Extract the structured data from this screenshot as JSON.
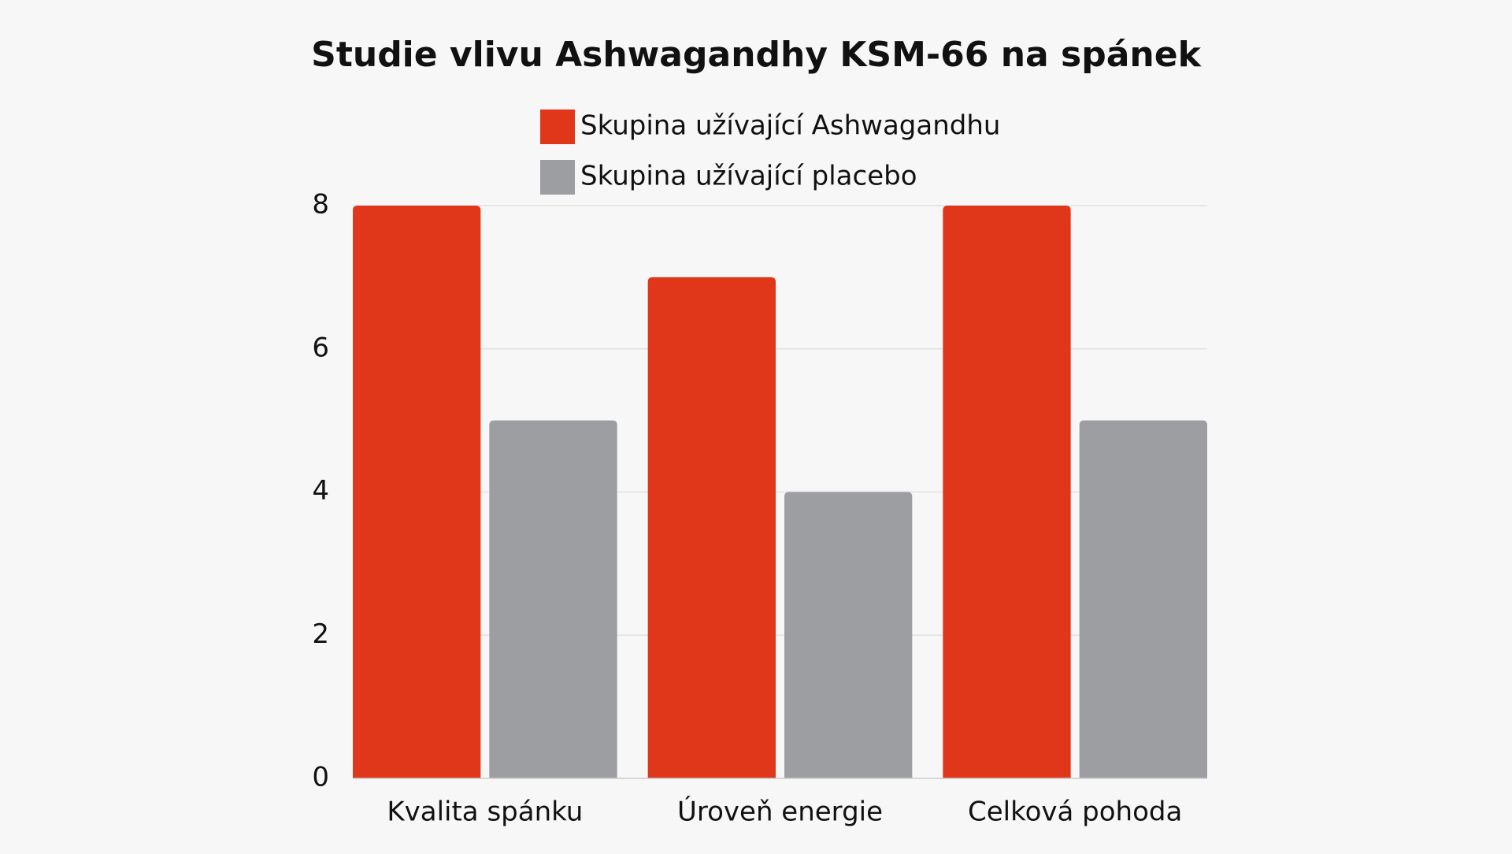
{
  "chart_data": {
    "type": "bar",
    "title": "Studie vlivu Ashwagandhy KSM-66 na spánek",
    "categories": [
      "Kvalita spánku",
      "Úroveň energie",
      "Celková pohoda"
    ],
    "series": [
      {
        "name": "Skupina užívající Ashwagandhu",
        "color": "#e0371a",
        "values": [
          8,
          7,
          8
        ]
      },
      {
        "name": "Skupina užívající placebo",
        "color": "#9d9ea2",
        "values": [
          5,
          4,
          5
        ]
      }
    ],
    "ylim": [
      0,
      8
    ],
    "yticks": [
      0,
      2,
      4,
      6,
      8
    ],
    "grid": true
  }
}
